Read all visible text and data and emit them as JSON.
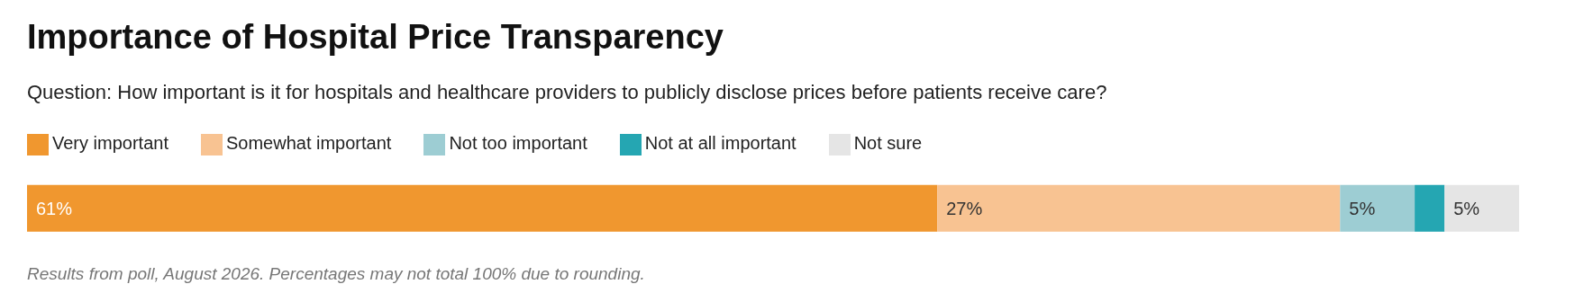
{
  "chart_data": {
    "type": "bar",
    "orientation": "horizontal",
    "stacked": true,
    "title": "Importance of Hospital Price Transparency",
    "subtitle": "Question: How important is it for hospitals and healthcare providers to publicly disclose prices before patients receive care?",
    "categories": [
      null
    ],
    "series": [
      {
        "name": "Very important",
        "color": "#f0972f",
        "values": [
          61
        ],
        "value_labels": [
          "61%"
        ]
      },
      {
        "name": "Somewhat important",
        "color": "#f8c392",
        "values": [
          27
        ],
        "value_labels": [
          "27%"
        ]
      },
      {
        "name": "Not too important",
        "color": "#9dcdd3",
        "values": [
          5
        ],
        "value_labels": [
          "5%"
        ]
      },
      {
        "name": "Not at all important",
        "color": "#25a6b2",
        "values": [
          2
        ],
        "value_labels": [
          null
        ]
      },
      {
        "name": "Not sure",
        "color": "#e5e5e5",
        "values": [
          5
        ],
        "value_labels": [
          "5%"
        ]
      }
    ],
    "xlim": [
      0,
      100
    ],
    "tick_labels": false,
    "grid": false,
    "legend": "top left",
    "annotations": [
      "Results from poll, August 2026. Percentages may not total 100% due to rounding."
    ]
  }
}
